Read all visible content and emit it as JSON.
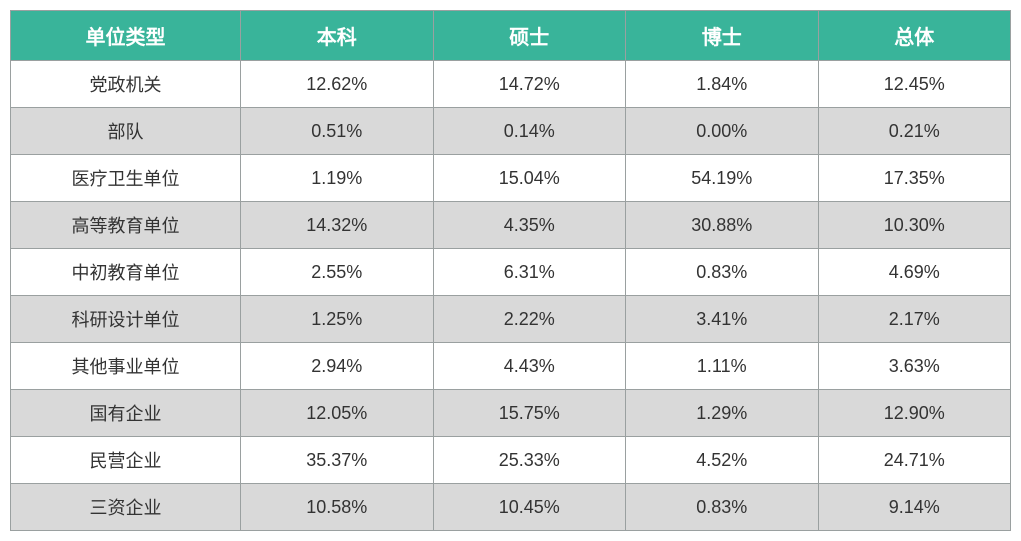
{
  "table": {
    "type": "table",
    "header_bg": "#39b49a",
    "header_text_color": "#ffffff",
    "header_fontsize": 20,
    "header_fontweight": "bold",
    "body_fontsize": 18,
    "body_text_color": "#333333",
    "row_bg_odd": "#ffffff",
    "row_bg_even": "#d9d9d9",
    "border_color": "#9aa0a0",
    "col_widths": [
      "23%",
      "19.25%",
      "19.25%",
      "19.25%",
      "19.25%"
    ],
    "columns": [
      "单位类型",
      "本科",
      "硕士",
      "博士",
      "总体"
    ],
    "rows": [
      [
        "党政机关",
        "12.62%",
        "14.72%",
        "1.84%",
        "12.45%"
      ],
      [
        "部队",
        "0.51%",
        "0.14%",
        "0.00%",
        "0.21%"
      ],
      [
        "医疗卫生单位",
        "1.19%",
        "15.04%",
        "54.19%",
        "17.35%"
      ],
      [
        "高等教育单位",
        "14.32%",
        "4.35%",
        "30.88%",
        "10.30%"
      ],
      [
        "中初教育单位",
        "2.55%",
        "6.31%",
        "0.83%",
        "4.69%"
      ],
      [
        "科研设计单位",
        "1.25%",
        "2.22%",
        "3.41%",
        "2.17%"
      ],
      [
        "其他事业单位",
        "2.94%",
        "4.43%",
        "1.11%",
        "3.63%"
      ],
      [
        "国有企业",
        "12.05%",
        "15.75%",
        "1.29%",
        "12.90%"
      ],
      [
        "民营企业",
        "35.37%",
        "25.33%",
        "4.52%",
        "24.71%"
      ],
      [
        "三资企业",
        "10.58%",
        "10.45%",
        "0.83%",
        "9.14%"
      ]
    ]
  }
}
